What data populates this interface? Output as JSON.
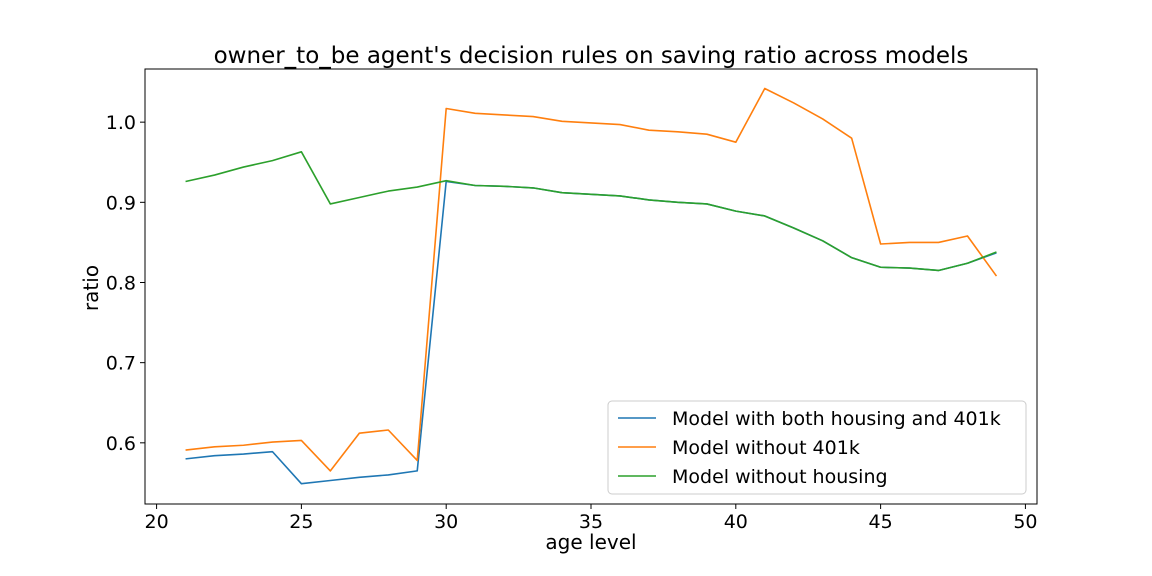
{
  "chart_data": {
    "type": "line",
    "title": "owner_to_be agent's decision rules on saving ratio across models",
    "xlabel": "age level",
    "ylabel": "ratio",
    "xlim": [
      19.6,
      50.4
    ],
    "ylim": [
      0.5237,
      1.0663
    ],
    "xticks": [
      20,
      25,
      30,
      35,
      40,
      45,
      50
    ],
    "xtick_labels": [
      "20",
      "25",
      "30",
      "35",
      "40",
      "45",
      "50"
    ],
    "yticks": [
      0.6,
      0.7,
      0.8,
      0.9,
      1.0
    ],
    "ytick_labels": [
      "0.6",
      "0.7",
      "0.8",
      "0.9",
      "1.0"
    ],
    "grid": false,
    "legend_position": "lower right",
    "x": [
      21,
      22,
      23,
      24,
      25,
      26,
      27,
      28,
      29,
      30,
      31,
      32,
      33,
      34,
      35,
      36,
      37,
      38,
      39,
      40,
      41,
      42,
      43,
      44,
      45,
      46,
      47,
      48,
      49
    ],
    "series": [
      {
        "name": "Model with both housing and 401k",
        "color": "#1f77b4",
        "values": [
          0.58,
          0.584,
          0.586,
          0.589,
          0.549,
          0.553,
          0.557,
          0.56,
          0.565,
          0.926,
          0.921,
          0.92,
          0.918,
          0.912,
          0.91,
          0.908,
          0.903,
          0.9,
          0.898,
          0.889,
          0.883,
          0.868,
          0.852,
          0.831,
          0.819,
          0.818,
          0.815,
          0.824,
          0.837
        ]
      },
      {
        "name": "Model without 401k",
        "color": "#ff7f0e",
        "values": [
          0.591,
          0.595,
          0.597,
          0.601,
          0.603,
          0.565,
          0.612,
          0.616,
          0.578,
          1.017,
          1.011,
          1.009,
          1.007,
          1.001,
          0.999,
          0.997,
          0.99,
          0.988,
          0.985,
          0.975,
          1.042,
          1.024,
          1.004,
          0.98,
          0.848,
          0.85,
          0.85,
          0.858,
          0.808
        ]
      },
      {
        "name": "Model without housing",
        "color": "#2ca02c",
        "values": [
          0.926,
          0.934,
          0.944,
          0.952,
          0.963,
          0.898,
          0.906,
          0.914,
          0.919,
          0.927,
          0.921,
          0.92,
          0.918,
          0.912,
          0.91,
          0.908,
          0.903,
          0.9,
          0.898,
          0.889,
          0.883,
          0.868,
          0.852,
          0.831,
          0.819,
          0.818,
          0.815,
          0.824,
          0.838
        ]
      }
    ]
  }
}
